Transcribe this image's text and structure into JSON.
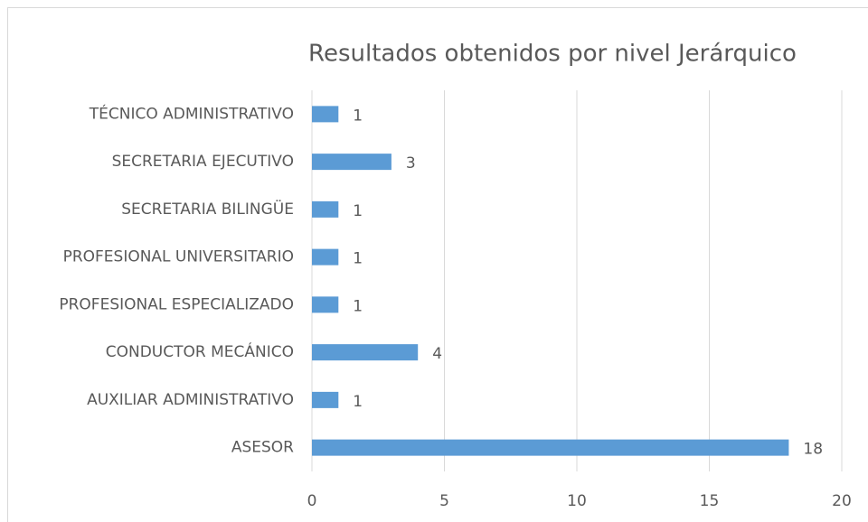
{
  "chart_data": {
    "type": "bar",
    "orientation": "horizontal",
    "title": "Resultados obtenidos por nivel Jerárquico",
    "categories": [
      "TÉCNICO ADMINISTRATIVO",
      "SECRETARIA EJECUTIVO",
      "SECRETARIA BILINGÜE",
      "PROFESIONAL UNIVERSITARIO",
      "PROFESIONAL ESPECIALIZADO",
      "CONDUCTOR MECÁNICO",
      "AUXILIAR ADMINISTRATIVO",
      "ASESOR"
    ],
    "values": [
      1,
      3,
      1,
      1,
      1,
      4,
      1,
      18
    ],
    "color": "#5b9bd5",
    "xlim": [
      0,
      20
    ],
    "xticks": [
      0,
      5,
      10,
      15,
      20
    ],
    "grid": true,
    "data_labels": true
  }
}
